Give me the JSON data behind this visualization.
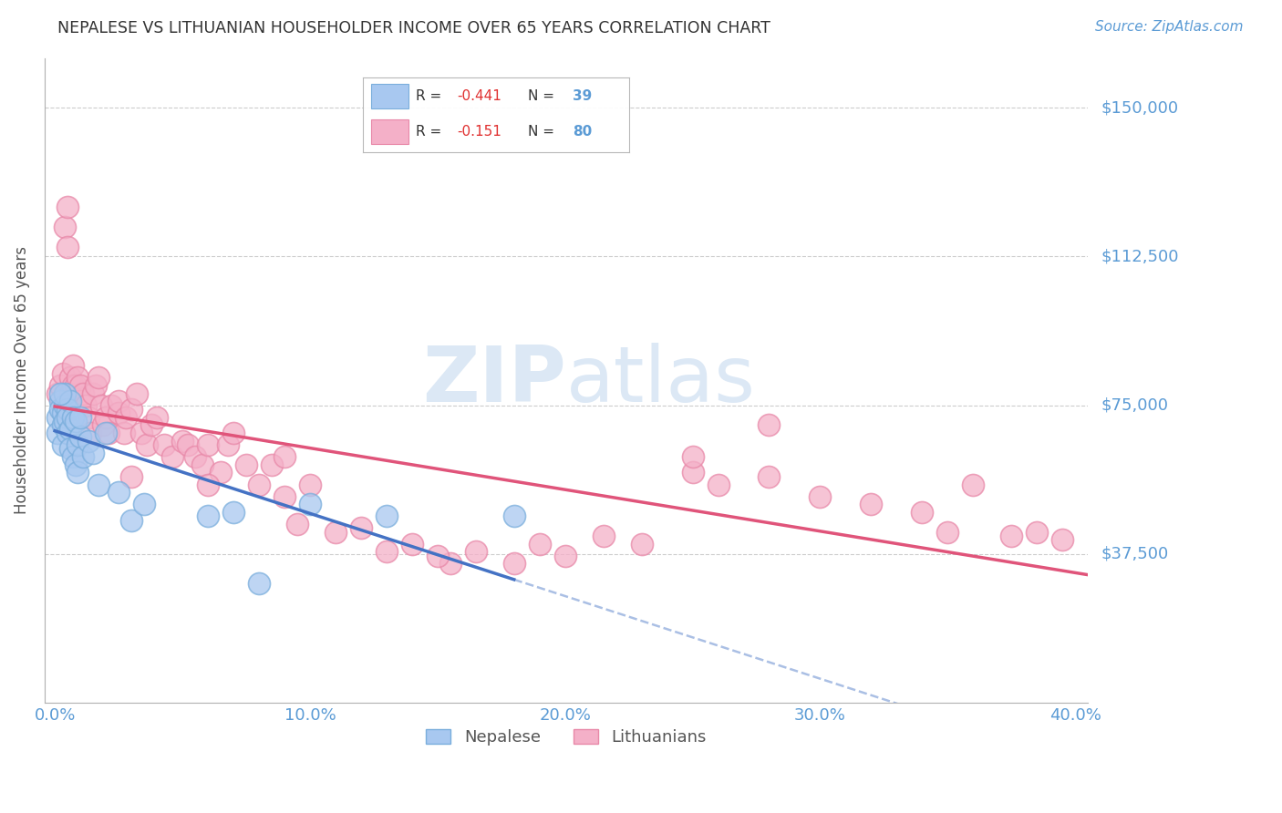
{
  "title": "NEPALESE VS LITHUANIAN HOUSEHOLDER INCOME OVER 65 YEARS CORRELATION CHART",
  "source": "Source: ZipAtlas.com",
  "ylabel": "Householder Income Over 65 years",
  "xlabel_ticks": [
    "0.0%",
    "10.0%",
    "20.0%",
    "30.0%",
    "40.0%"
  ],
  "xlabel_vals": [
    0.0,
    0.1,
    0.2,
    0.3,
    0.4
  ],
  "ytick_labels": [
    "$37,500",
    "$75,000",
    "$112,500",
    "$150,000"
  ],
  "ytick_vals": [
    37500,
    75000,
    112500,
    150000
  ],
  "ylim": [
    0,
    162500
  ],
  "xlim": [
    -0.004,
    0.405
  ],
  "nepalese_R": -0.441,
  "nepalese_N": 39,
  "lithuanian_R": -0.151,
  "lithuanian_N": 80,
  "nepalese_color": "#a8c8f0",
  "nepalese_edge_color": "#7aaedc",
  "nepalese_line_color": "#4472c4",
  "lithuanian_color": "#f4b0c8",
  "lithuanian_edge_color": "#e888a8",
  "lithuanian_line_color": "#e0547a",
  "background_color": "#ffffff",
  "grid_color": "#cccccc",
  "title_color": "#333333",
  "axis_label_color": "#555555",
  "tick_color": "#5b9bd5",
  "watermark_color": "#dce8f5",
  "nepalese_x": [
    0.001,
    0.001,
    0.002,
    0.002,
    0.003,
    0.003,
    0.003,
    0.004,
    0.004,
    0.004,
    0.005,
    0.005,
    0.005,
    0.006,
    0.006,
    0.006,
    0.007,
    0.007,
    0.008,
    0.008,
    0.009,
    0.009,
    0.01,
    0.01,
    0.011,
    0.013,
    0.015,
    0.017,
    0.02,
    0.025,
    0.03,
    0.035,
    0.06,
    0.07,
    0.08,
    0.1,
    0.13,
    0.18,
    0.002
  ],
  "nepalese_y": [
    72000,
    68000,
    76000,
    74000,
    73000,
    70000,
    65000,
    75000,
    78000,
    71000,
    74000,
    72000,
    68000,
    76000,
    69000,
    64000,
    72000,
    62000,
    71000,
    60000,
    65000,
    58000,
    67000,
    72000,
    62000,
    66000,
    63000,
    55000,
    68000,
    53000,
    46000,
    50000,
    47000,
    48000,
    30000,
    50000,
    47000,
    47000,
    78000
  ],
  "lithuanian_x": [
    0.001,
    0.002,
    0.003,
    0.004,
    0.005,
    0.005,
    0.006,
    0.006,
    0.007,
    0.007,
    0.008,
    0.009,
    0.01,
    0.01,
    0.011,
    0.012,
    0.013,
    0.014,
    0.015,
    0.016,
    0.017,
    0.018,
    0.019,
    0.02,
    0.021,
    0.022,
    0.025,
    0.025,
    0.027,
    0.028,
    0.03,
    0.032,
    0.034,
    0.036,
    0.038,
    0.04,
    0.043,
    0.046,
    0.05,
    0.052,
    0.055,
    0.058,
    0.06,
    0.065,
    0.068,
    0.07,
    0.075,
    0.08,
    0.085,
    0.09,
    0.095,
    0.1,
    0.11,
    0.12,
    0.13,
    0.14,
    0.155,
    0.165,
    0.18,
    0.19,
    0.2,
    0.215,
    0.23,
    0.25,
    0.26,
    0.28,
    0.3,
    0.32,
    0.34,
    0.36,
    0.375,
    0.385,
    0.395,
    0.03,
    0.06,
    0.09,
    0.15,
    0.25,
    0.28,
    0.35
  ],
  "lithuanian_y": [
    78000,
    80000,
    83000,
    120000,
    125000,
    115000,
    82000,
    78000,
    85000,
    80000,
    80000,
    82000,
    80000,
    76000,
    78000,
    75000,
    72000,
    68000,
    78000,
    80000,
    82000,
    75000,
    70000,
    72000,
    68000,
    75000,
    73000,
    76000,
    68000,
    72000,
    74000,
    78000,
    68000,
    65000,
    70000,
    72000,
    65000,
    62000,
    66000,
    65000,
    62000,
    60000,
    65000,
    58000,
    65000,
    68000,
    60000,
    55000,
    60000,
    62000,
    45000,
    55000,
    43000,
    44000,
    38000,
    40000,
    35000,
    38000,
    35000,
    40000,
    37000,
    42000,
    40000,
    58000,
    55000,
    70000,
    52000,
    50000,
    48000,
    55000,
    42000,
    43000,
    41000,
    57000,
    55000,
    52000,
    37000,
    62000,
    57000,
    43000
  ]
}
